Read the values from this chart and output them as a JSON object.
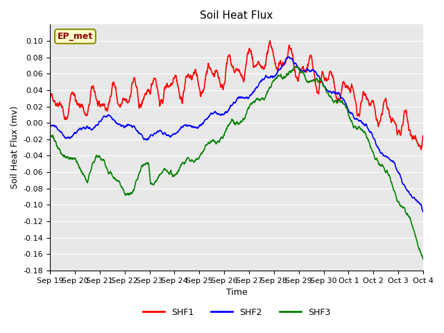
{
  "title": "Soil Heat Flux",
  "xlabel": "Time",
  "ylabel": "Soil Heat Flux (mv)",
  "ylim": [
    -0.18,
    0.12
  ],
  "yticks": [
    -0.18,
    -0.16,
    -0.14,
    -0.12,
    -0.1,
    -0.08,
    -0.06,
    -0.04,
    -0.02,
    0.0,
    0.02,
    0.04,
    0.06,
    0.08,
    0.1
  ],
  "xtick_labels": [
    "Sep 19",
    "Sep 20",
    "Sep 21",
    "Sep 22",
    "Sep 23",
    "Sep 24",
    "Sep 25",
    "Sep 26",
    "Sep 27",
    "Sep 28",
    "Sep 29",
    "Sep 30",
    "Oct 1",
    "Oct 2",
    "Oct 3",
    "Oct 4"
  ],
  "legend_labels": [
    "SHF1",
    "SHF2",
    "SHF3"
  ],
  "legend_colors": [
    "red",
    "blue",
    "green"
  ],
  "annotation_text": "EP_met",
  "annotation_box_color": "#ffffcc",
  "annotation_box_edgecolor": "#8b8b00",
  "bg_color": "#e8e8e8",
  "line_colors": [
    "red",
    "blue",
    "green"
  ],
  "line_width": 1.2
}
